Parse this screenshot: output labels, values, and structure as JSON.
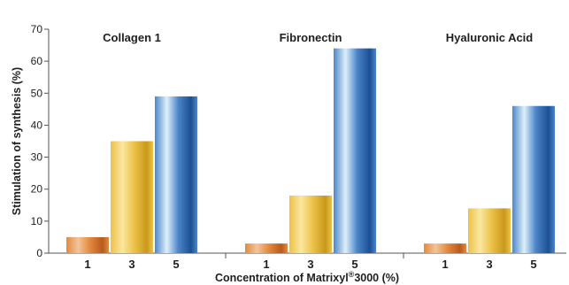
{
  "chart_data": {
    "type": "bar",
    "groups": [
      "Collagen 1",
      "Fibronectin",
      "Hyaluronic Acid"
    ],
    "categories": [
      "1",
      "3",
      "5"
    ],
    "series": [
      {
        "group": "Collagen 1",
        "values": [
          5,
          35,
          49
        ]
      },
      {
        "group": "Fibronectin",
        "values": [
          3,
          18,
          64
        ]
      },
      {
        "group": "Hyaluronic Acid",
        "values": [
          3,
          14,
          46
        ]
      }
    ],
    "ylabel": "Stimulation of synthesis  (%)",
    "xlabel_main": "Concentration of Matrixyl",
    "xlabel_sup": "®",
    "xlabel_tail": "3000 (%)",
    "ylim": [
      0,
      70
    ],
    "yticks": [
      "0",
      "10",
      "20",
      "30",
      "40",
      "50",
      "60",
      "70"
    ],
    "grid": false,
    "bar_colors": {
      "1": {
        "light": "#f3c49a",
        "mid": "#e38a3e",
        "dark": "#b85a1c"
      },
      "3": {
        "light": "#fbe7a0",
        "mid": "#ecc24a",
        "dark": "#c9981a"
      },
      "5": {
        "light": "#dff0fb",
        "mid": "#4c86c9",
        "dark": "#1c4f93"
      }
    }
  }
}
